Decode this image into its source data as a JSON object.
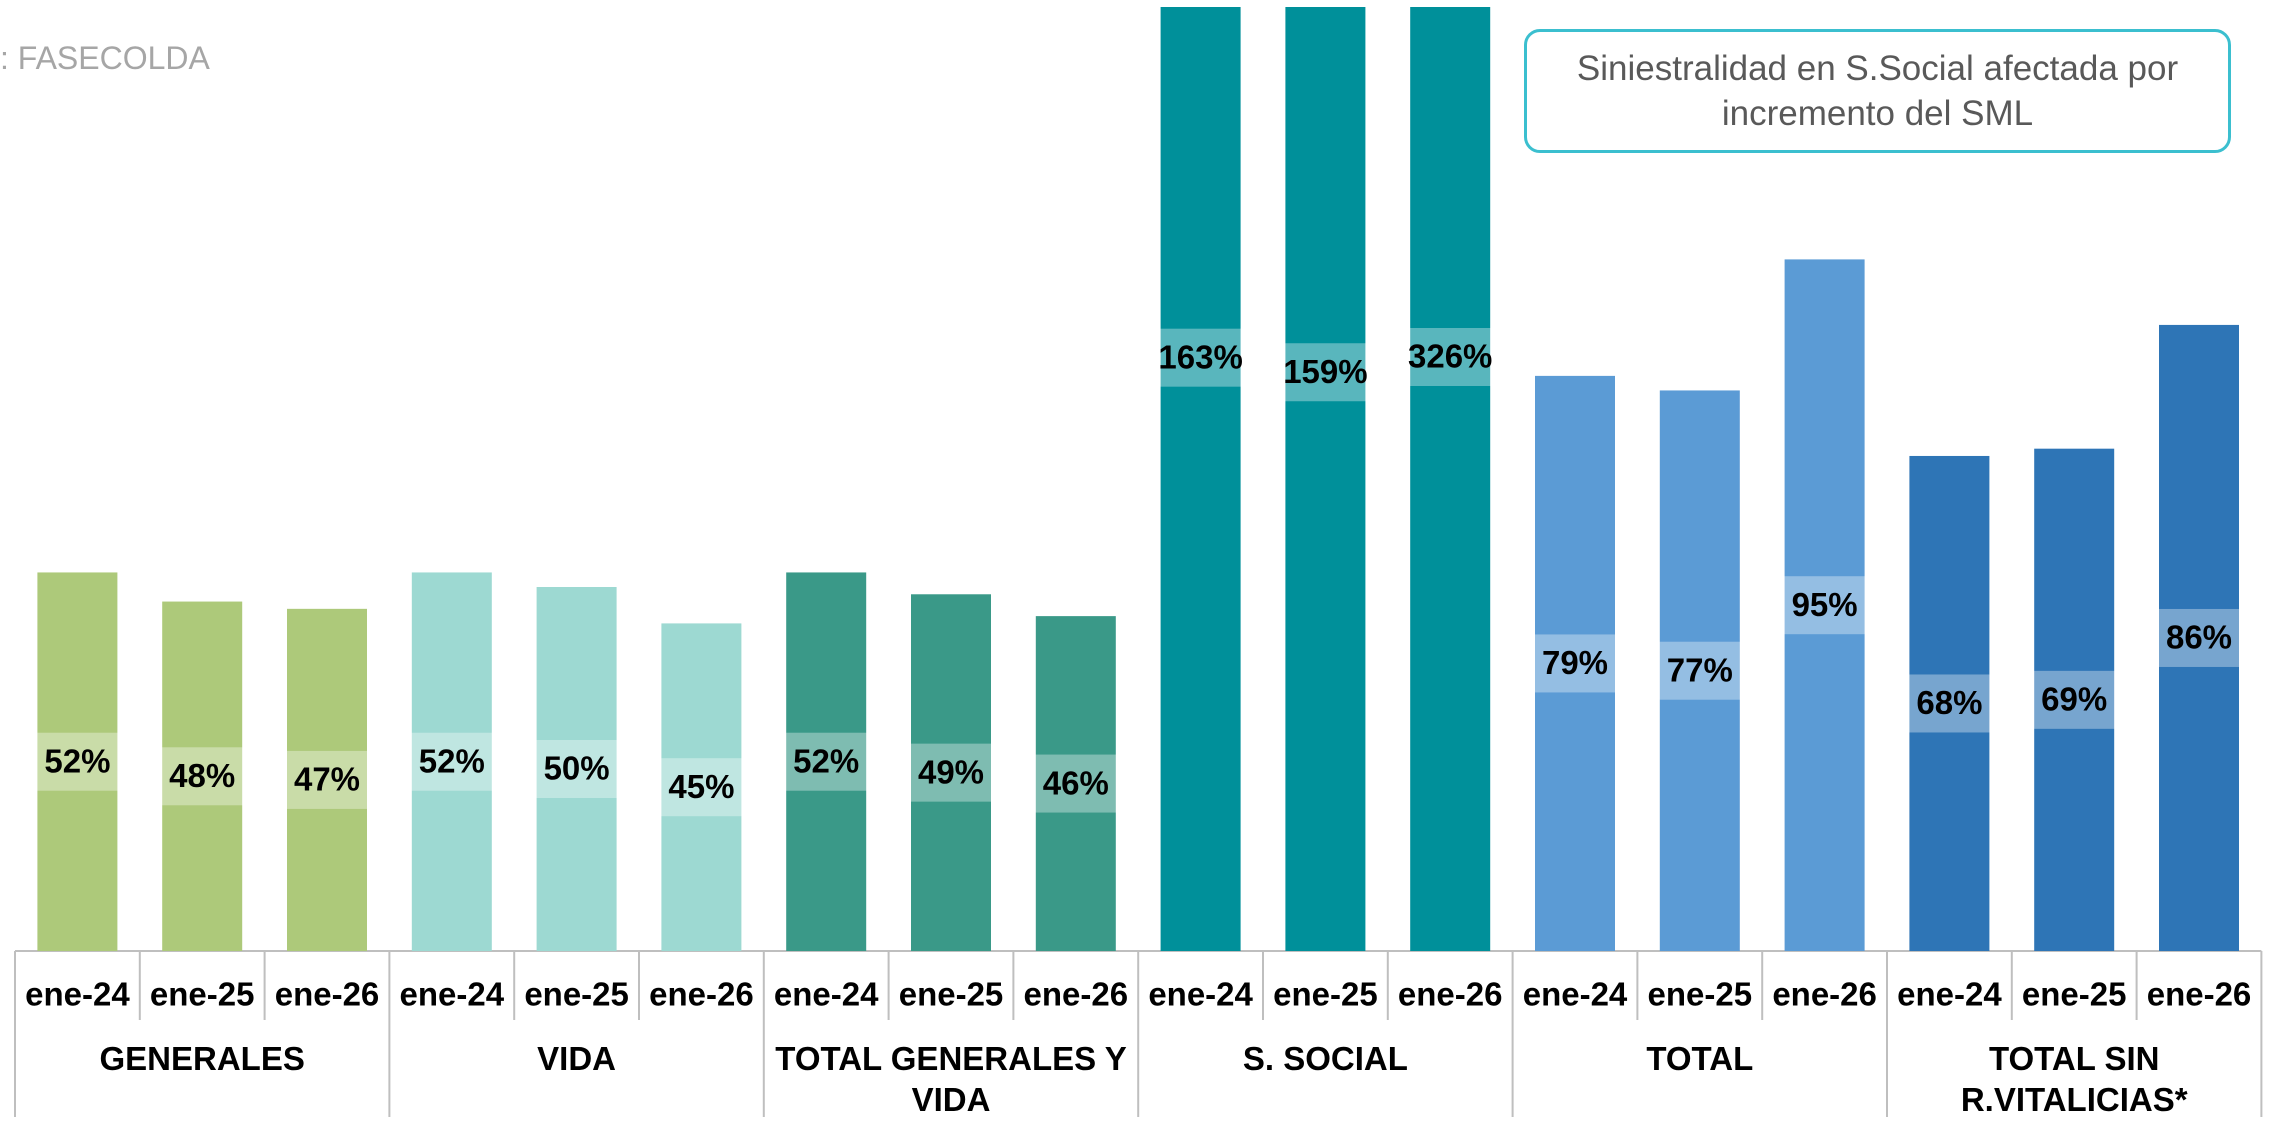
{
  "chart_data": {
    "type": "grouped-bar",
    "source": ": FASECOLDA",
    "annotation": "Siniestralidad en S.Social afectada por incremento del SML",
    "periods": [
      "ene-24",
      "ene-25",
      "ene-26"
    ],
    "groups": [
      {
        "name": "GENERALES",
        "color": "#adc97a",
        "values": [
          52,
          48,
          47
        ],
        "value_labels": [
          "52%",
          "48%",
          "47%"
        ]
      },
      {
        "name": "VIDA",
        "color": "#9dd9d2",
        "values": [
          52,
          50,
          45
        ],
        "value_labels": [
          "52%",
          "50%",
          "45%"
        ]
      },
      {
        "name": "TOTAL GENERALES Y VIDA",
        "color": "#3a9988",
        "values": [
          52,
          49,
          46
        ],
        "value_labels": [
          "52%",
          "49%",
          "46%"
        ]
      },
      {
        "name": "S. SOCIAL",
        "color": "#00909a",
        "values": [
          163,
          159,
          326
        ],
        "value_labels": [
          "163%",
          "159%",
          "326%"
        ]
      },
      {
        "name": "TOTAL",
        "color": "#5b9bd5",
        "values": [
          79,
          77,
          95
        ],
        "value_labels": [
          "79%",
          "77%",
          "95%"
        ]
      },
      {
        "name": "TOTAL SIN R.VITALICIAS*",
        "color": "#2e75b6",
        "values": [
          68,
          69,
          86
        ],
        "value_labels": [
          "68%",
          "69%",
          "86%"
        ]
      }
    ]
  }
}
